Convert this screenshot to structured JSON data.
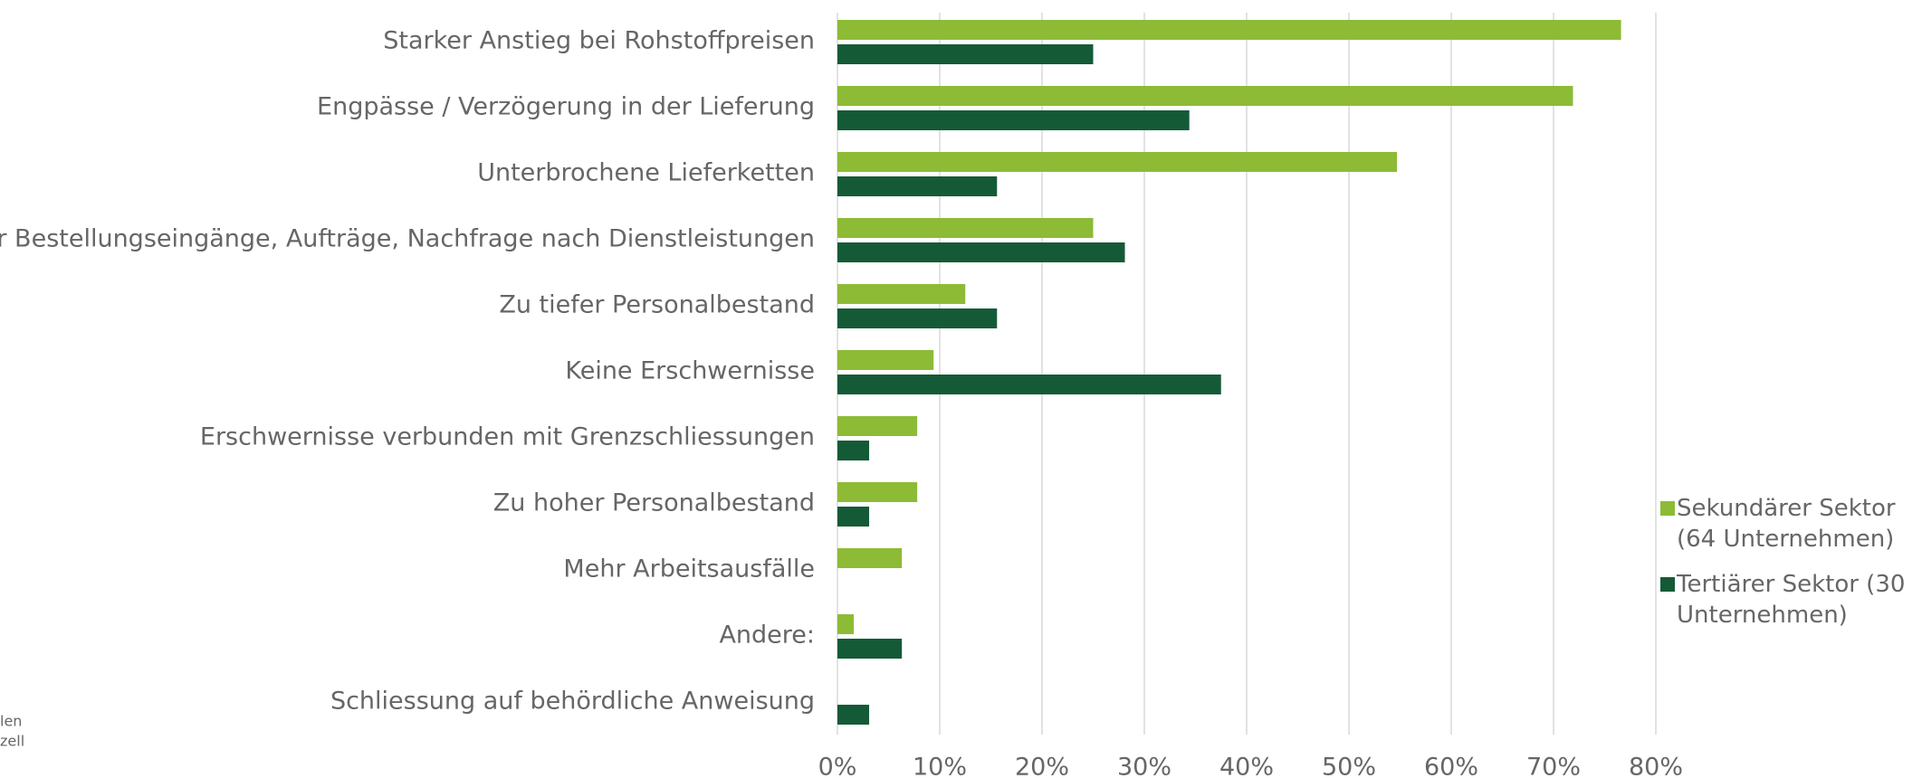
{
  "chart_data": {
    "type": "hbar",
    "categories": [
      "Starker Anstieg bei Rohstoffpreisen",
      "Engpässe / Verzögerung in der Lieferung",
      "Unterbrochene Lieferketten",
      "Weniger Bestellungseingänge, Aufträge, Nachfrage nach Dienstleistungen",
      "Zu tiefer Personalbestand",
      "Keine Erschwernisse",
      "Erschwernisse verbunden mit Grenzschliessungen",
      "Zu hoher Personalbestand",
      "Mehr Arbeitsausfälle",
      "Andere:",
      "Schliessung auf behördliche Anweisung"
    ],
    "series": [
      {
        "name": "Sekundärer Sektor (64 Unternehmen)",
        "color": "#8dbb35",
        "values": [
          76.6,
          71.9,
          54.7,
          25,
          12.5,
          9.4,
          7.8,
          7.8,
          6.3,
          1.6,
          0
        ]
      },
      {
        "name": "Tertiärer Sektor (30 Unternehmen)",
        "color": "#155a37",
        "values": [
          25,
          34.4,
          15.6,
          28.1,
          15.6,
          37.5,
          3.1,
          3.1,
          0,
          6.3,
          3.1
        ]
      }
    ],
    "xlim": [
      0,
      80
    ],
    "xticks": [
      {
        "value": 0,
        "label": "0%"
      },
      {
        "value": 10,
        "label": "10%"
      },
      {
        "value": 20,
        "label": "20%"
      },
      {
        "value": 30,
        "label": "30%"
      },
      {
        "value": 40,
        "label": "40%"
      },
      {
        "value": 50,
        "label": "50%"
      },
      {
        "value": 60,
        "label": "60%"
      },
      {
        "value": 70,
        "label": "70%"
      },
      {
        "value": 80,
        "label": "80%"
      }
    ],
    "grid": true,
    "legend": "right",
    "side_text": [
      "len",
      "zell"
    ]
  }
}
